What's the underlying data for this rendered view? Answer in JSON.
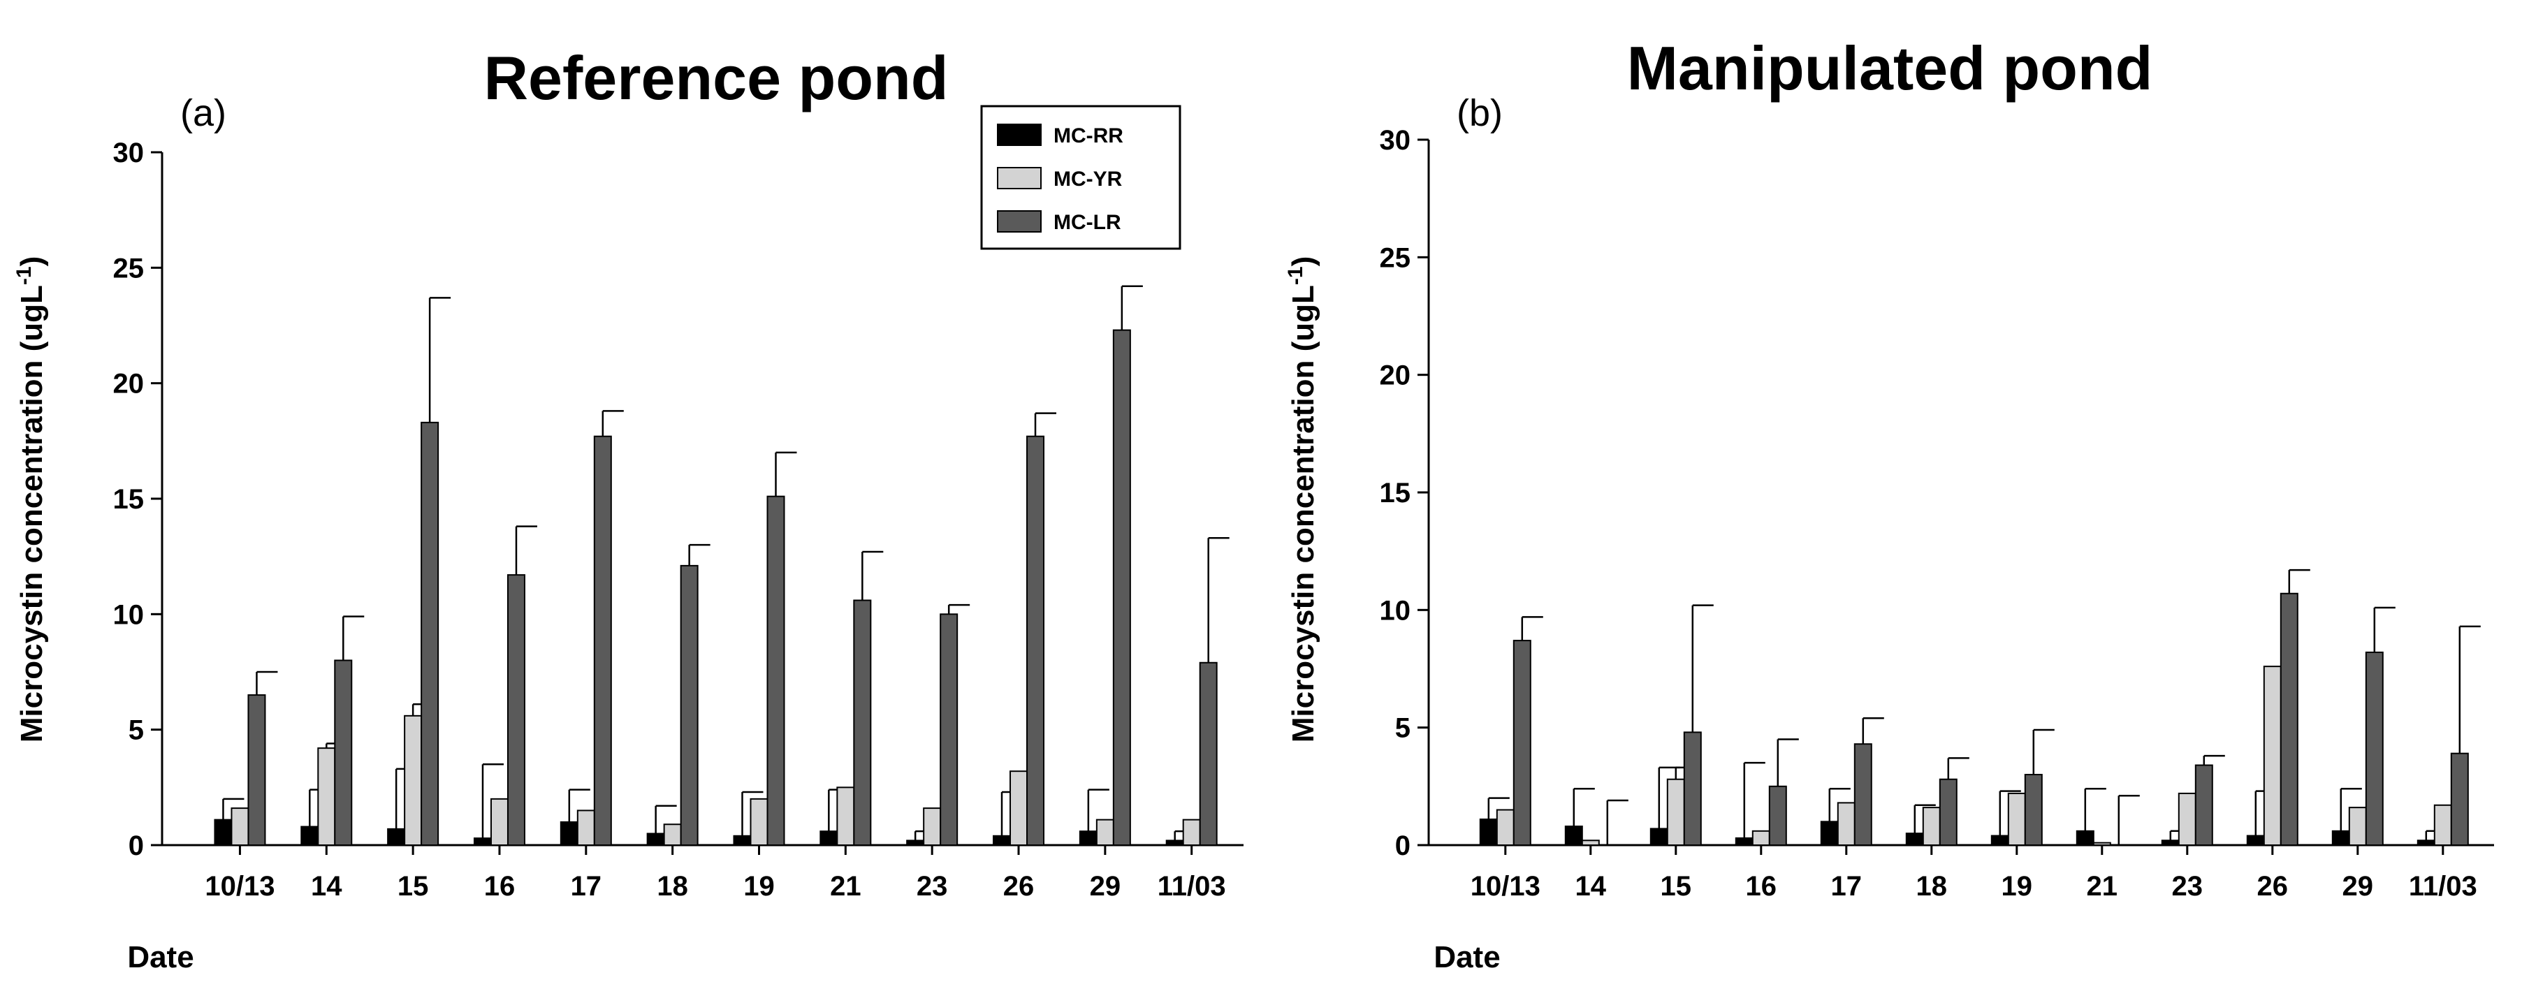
{
  "legend": {
    "entries": [
      "MC-RR",
      "MC-YR",
      "MC-LR"
    ],
    "placement": "top-right of panel (a)"
  },
  "series_colors": [
    "#000000",
    "#d3d3d3",
    "#5a5a5a"
  ],
  "chart_data": [
    {
      "type": "bar",
      "panel_label": "(a)",
      "title": "Reference pond",
      "xlabel": "Date",
      "ylabel_main": "Microcystin concentration (ugL",
      "ylabel_sup": "-1",
      "ylabel_close": ")",
      "ylim": [
        0,
        30
      ],
      "yticks": [
        "0",
        "5",
        "10",
        "15",
        "20",
        "25",
        "30"
      ],
      "categories": [
        "10/13",
        "14",
        "15",
        "16",
        "17",
        "18",
        "19",
        "21",
        "23",
        "26",
        "29",
        "11/03"
      ],
      "series": [
        {
          "name": "MC-RR",
          "values": [
            1.1,
            0.8,
            0.7,
            0.3,
            1.0,
            0.5,
            0.4,
            0.6,
            0.2,
            0.4,
            0.6,
            0.2
          ],
          "errors": [
            0.9,
            1.6,
            2.6,
            3.2,
            1.4,
            1.2,
            1.9,
            1.8,
            0.4,
            1.9,
            1.8,
            0.4
          ]
        },
        {
          "name": "MC-YR",
          "values": [
            1.6,
            4.2,
            5.6,
            2.0,
            1.5,
            0.9,
            2.0,
            2.5,
            1.6,
            3.2,
            1.1,
            1.1
          ],
          "errors": [
            0.0,
            0.2,
            0.5,
            0.0,
            0.0,
            0.0,
            0.0,
            0.0,
            0.0,
            0.0,
            0.0,
            0.0
          ]
        },
        {
          "name": "MC-LR",
          "values": [
            6.5,
            8.0,
            18.3,
            11.7,
            17.7,
            12.1,
            15.1,
            10.6,
            10.0,
            17.7,
            22.3,
            7.9
          ],
          "errors": [
            1.0,
            1.9,
            5.4,
            2.1,
            1.1,
            0.9,
            1.9,
            2.1,
            0.4,
            1.0,
            1.9,
            5.4
          ]
        }
      ]
    },
    {
      "type": "bar",
      "panel_label": "(b)",
      "title": "Manipulated pond",
      "xlabel": "Date",
      "ylabel_main": "Microcystin concentration (ugL",
      "ylabel_sup": "-1",
      "ylabel_close": ")",
      "ylim": [
        0,
        30
      ],
      "yticks": [
        "0",
        "5",
        "10",
        "15",
        "20",
        "25",
        "30"
      ],
      "categories": [
        "10/13",
        "14",
        "15",
        "16",
        "17",
        "18",
        "19",
        "21",
        "23",
        "26",
        "29",
        "11/03"
      ],
      "series": [
        {
          "name": "MC-RR",
          "values": [
            1.1,
            0.8,
            0.7,
            0.3,
            1.0,
            0.5,
            0.4,
            0.6,
            0.2,
            0.4,
            0.6,
            0.2
          ],
          "errors": [
            0.9,
            1.6,
            2.6,
            3.2,
            1.4,
            1.2,
            1.9,
            1.8,
            0.4,
            1.9,
            1.8,
            0.4
          ]
        },
        {
          "name": "MC-YR",
          "values": [
            1.5,
            0.2,
            2.8,
            0.6,
            1.8,
            1.6,
            2.2,
            0.1,
            2.2,
            7.6,
            1.6,
            1.7
          ],
          "errors": [
            0.0,
            0.0,
            0.5,
            0.0,
            0.0,
            0.0,
            0.0,
            0.0,
            0.0,
            0.0,
            0.0,
            0.0
          ]
        },
        {
          "name": "MC-LR",
          "values": [
            8.7,
            0.0,
            4.8,
            2.5,
            4.3,
            2.8,
            3.0,
            0.0,
            3.4,
            10.7,
            8.2,
            3.9
          ],
          "errors": [
            1.0,
            1.9,
            5.4,
            2.0,
            1.1,
            0.9,
            1.9,
            2.1,
            0.4,
            1.0,
            1.9,
            5.4
          ]
        }
      ]
    }
  ]
}
